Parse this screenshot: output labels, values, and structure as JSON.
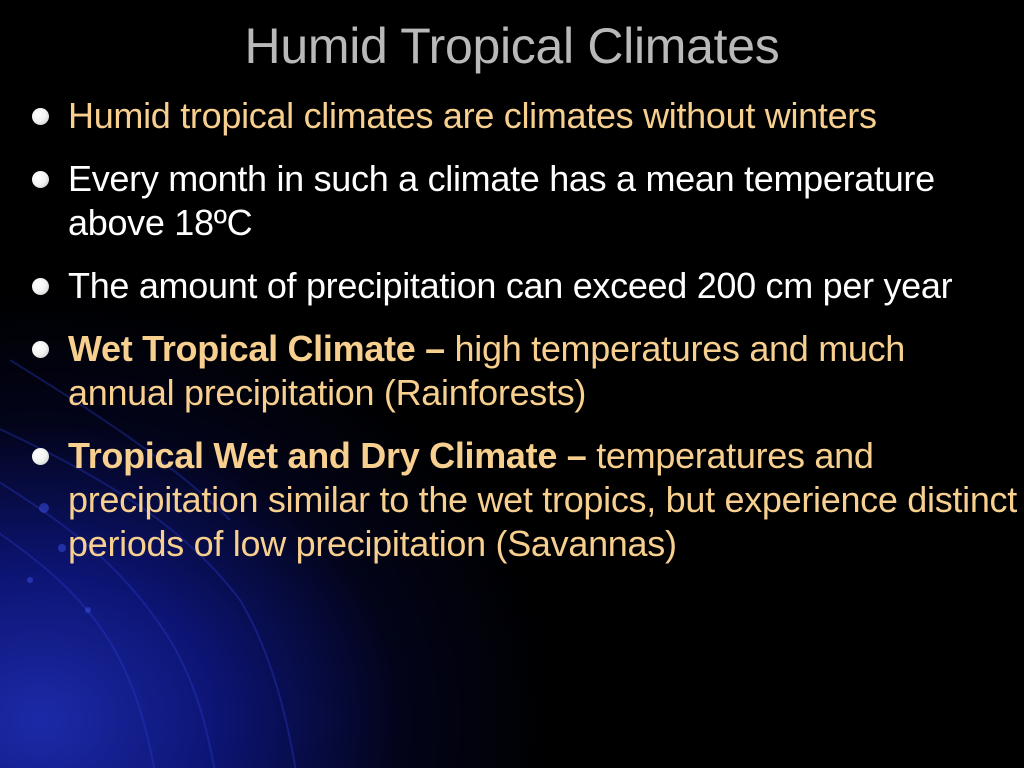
{
  "title": "Humid Tropical Climates",
  "colors": {
    "title": "#b9b9b9",
    "accent_text": "#f7cf8f",
    "plain_text": "#ffffff",
    "background": "#000000",
    "swirl_blue": "#1c2aa8"
  },
  "bullets": [
    {
      "icon": "bullet-dot-icon",
      "text": "Humid tropical climates are climates without winters",
      "color": "#f7cf8f"
    },
    {
      "icon": "bullet-dot-icon",
      "text": "Every month in such a climate has a mean temperature above 18ºC",
      "color": "#ffffff"
    },
    {
      "icon": "bullet-dot-icon",
      "text": "The amount of precipitation can exceed 200 cm per year",
      "color": "#ffffff"
    },
    {
      "icon": "bullet-dot-icon",
      "term": "Wet Tropical Climate –",
      "text": " high temperatures and much annual precipitation (Rainforests)",
      "color": "#f7cf8f"
    },
    {
      "icon": "bullet-dot-icon",
      "term": "Tropical Wet and Dry Climate –",
      "text": " temperatures and precipitation similar to the wet tropics, but experience distinct periods of low precipitation (Savannas)",
      "color": "#f7cf8f"
    }
  ]
}
